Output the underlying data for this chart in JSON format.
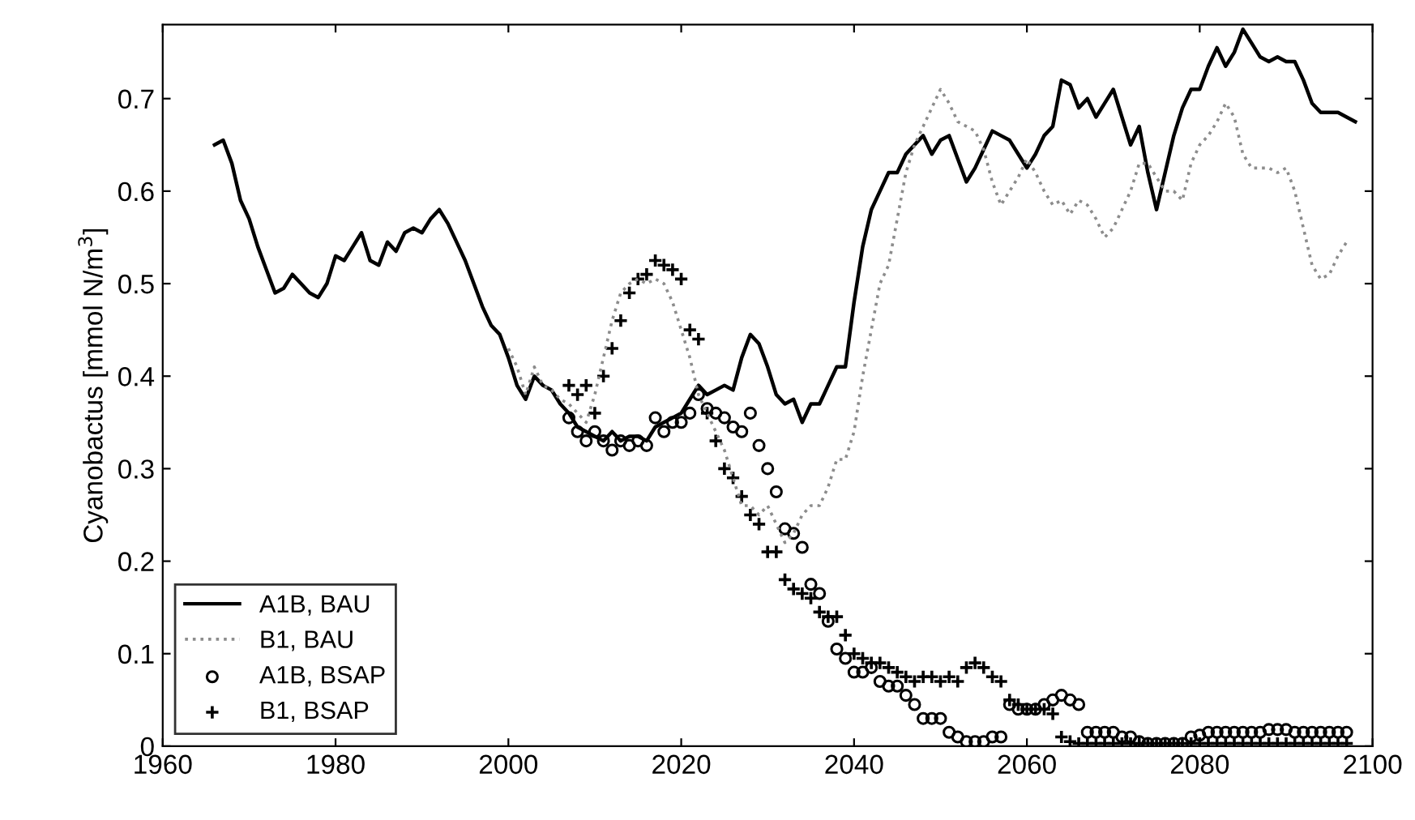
{
  "chart_data": {
    "type": "line",
    "ylabel": "Cyanobactus [mmol N/m$^{3}$]",
    "xlim": [
      1960,
      2100
    ],
    "xticks": [
      1960,
      1980,
      2000,
      2020,
      2040,
      2060,
      2080,
      2100
    ],
    "ylim": [
      0,
      0.78
    ],
    "yticks": [
      0,
      0.1,
      0.2,
      0.3,
      0.4,
      0.5,
      0.6,
      0.7
    ],
    "grid": false,
    "legend": "bottom left",
    "series": [
      {
        "name": "A1B, BAU",
        "color": "#000000",
        "line_style": "solid",
        "marker": "none",
        "x": [
          1966,
          1967,
          1968,
          1969,
          1970,
          1971,
          1972,
          1973,
          1974,
          1975,
          1976,
          1977,
          1978,
          1979,
          1980,
          1981,
          1982,
          1983,
          1984,
          1985,
          1986,
          1987,
          1988,
          1989,
          1990,
          1991,
          1992,
          1993,
          1994,
          1995,
          1996,
          1997,
          1998,
          1999,
          2000,
          2001,
          2002,
          2003,
          2004,
          2005,
          2006,
          2007,
          2008,
          2009,
          2010,
          2011,
          2012,
          2013,
          2014,
          2015,
          2016,
          2017,
          2018,
          2019,
          2020,
          2021,
          2022,
          2023,
          2024,
          2025,
          2026,
          2027,
          2028,
          2029,
          2030,
          2031,
          2032,
          2033,
          2034,
          2035,
          2036,
          2037,
          2038,
          2039,
          2040,
          2041,
          2042,
          2043,
          2044,
          2045,
          2046,
          2047,
          2048,
          2049,
          2050,
          2051,
          2052,
          2053,
          2054,
          2055,
          2056,
          2057,
          2058,
          2059,
          2060,
          2061,
          2062,
          2063,
          2064,
          2065,
          2066,
          2067,
          2068,
          2069,
          2070,
          2071,
          2072,
          2073,
          2074,
          2075,
          2076,
          2077,
          2078,
          2079,
          2080,
          2081,
          2082,
          2083,
          2084,
          2085,
          2086,
          2087,
          2088,
          2089,
          2090,
          2091,
          2092,
          2093,
          2094,
          2095,
          2096,
          2097,
          2098
        ],
        "values": [
          0.65,
          0.655,
          0.63,
          0.59,
          0.57,
          0.54,
          0.515,
          0.49,
          0.495,
          0.51,
          0.5,
          0.49,
          0.485,
          0.5,
          0.53,
          0.525,
          0.54,
          0.555,
          0.525,
          0.52,
          0.545,
          0.535,
          0.555,
          0.56,
          0.555,
          0.57,
          0.58,
          0.565,
          0.545,
          0.525,
          0.5,
          0.475,
          0.455,
          0.445,
          0.42,
          0.39,
          0.375,
          0.4,
          0.39,
          0.385,
          0.37,
          0.36,
          0.345,
          0.34,
          0.335,
          0.33,
          0.34,
          0.33,
          0.335,
          0.335,
          0.33,
          0.345,
          0.35,
          0.355,
          0.36,
          0.375,
          0.39,
          0.38,
          0.385,
          0.39,
          0.385,
          0.42,
          0.445,
          0.435,
          0.41,
          0.38,
          0.37,
          0.375,
          0.35,
          0.37,
          0.37,
          0.39,
          0.41,
          0.41,
          0.48,
          0.54,
          0.58,
          0.6,
          0.62,
          0.62,
          0.64,
          0.65,
          0.66,
          0.64,
          0.655,
          0.66,
          0.635,
          0.61,
          0.625,
          0.645,
          0.665,
          0.66,
          0.655,
          0.64,
          0.625,
          0.64,
          0.66,
          0.67,
          0.72,
          0.715,
          0.69,
          0.7,
          0.68,
          0.695,
          0.71,
          0.68,
          0.65,
          0.67,
          0.62,
          0.58,
          0.62,
          0.66,
          0.69,
          0.71,
          0.71,
          0.735,
          0.755,
          0.735,
          0.75,
          0.775,
          0.76,
          0.745,
          0.74,
          0.745,
          0.74,
          0.74,
          0.72,
          0.695,
          0.685,
          0.685,
          0.685,
          0.68,
          0.675
        ]
      },
      {
        "name": "B1, BAU",
        "color": "#8c8c8c",
        "line_style": "dotted",
        "marker": "none",
        "x": [
          2000,
          2001,
          2002,
          2003,
          2004,
          2005,
          2006,
          2007,
          2008,
          2009,
          2010,
          2011,
          2012,
          2013,
          2014,
          2015,
          2016,
          2017,
          2018,
          2019,
          2020,
          2021,
          2022,
          2023,
          2024,
          2025,
          2026,
          2027,
          2028,
          2029,
          2030,
          2031,
          2032,
          2033,
          2034,
          2035,
          2036,
          2037,
          2038,
          2039,
          2040,
          2041,
          2042,
          2043,
          2044,
          2045,
          2046,
          2047,
          2048,
          2049,
          2050,
          2051,
          2052,
          2053,
          2054,
          2055,
          2056,
          2057,
          2058,
          2059,
          2060,
          2061,
          2062,
          2063,
          2064,
          2065,
          2066,
          2067,
          2068,
          2069,
          2070,
          2071,
          2072,
          2073,
          2074,
          2075,
          2076,
          2077,
          2078,
          2079,
          2080,
          2081,
          2082,
          2083,
          2084,
          2085,
          2086,
          2087,
          2088,
          2089,
          2090,
          2091,
          2092,
          2093,
          2094,
          2095,
          2096,
          2097
        ],
        "values": [
          0.43,
          0.41,
          0.38,
          0.41,
          0.39,
          0.385,
          0.375,
          0.37,
          0.36,
          0.35,
          0.38,
          0.42,
          0.46,
          0.49,
          0.5,
          0.505,
          0.5,
          0.505,
          0.5,
          0.48,
          0.45,
          0.42,
          0.38,
          0.36,
          0.34,
          0.32,
          0.29,
          0.26,
          0.26,
          0.25,
          0.26,
          0.24,
          0.22,
          0.23,
          0.25,
          0.26,
          0.26,
          0.28,
          0.31,
          0.31,
          0.34,
          0.4,
          0.45,
          0.5,
          0.52,
          0.57,
          0.62,
          0.65,
          0.67,
          0.69,
          0.71,
          0.695,
          0.675,
          0.67,
          0.665,
          0.645,
          0.61,
          0.585,
          0.6,
          0.615,
          0.635,
          0.62,
          0.6,
          0.585,
          0.59,
          0.575,
          0.59,
          0.585,
          0.57,
          0.55,
          0.56,
          0.58,
          0.6,
          0.63,
          0.63,
          0.615,
          0.6,
          0.6,
          0.59,
          0.63,
          0.65,
          0.66,
          0.675,
          0.695,
          0.68,
          0.64,
          0.625,
          0.625,
          0.625,
          0.62,
          0.625,
          0.6,
          0.56,
          0.52,
          0.505,
          0.51,
          0.53,
          0.545
        ]
      },
      {
        "name": "A1B, BSAP",
        "color": "#000000",
        "type": "scatter",
        "marker": "circle",
        "x": [
          2007,
          2008,
          2009,
          2010,
          2011,
          2012,
          2013,
          2014,
          2015,
          2016,
          2017,
          2018,
          2019,
          2020,
          2021,
          2022,
          2023,
          2024,
          2025,
          2026,
          2027,
          2028,
          2029,
          2030,
          2031,
          2032,
          2033,
          2034,
          2035,
          2036,
          2037,
          2038,
          2039,
          2040,
          2041,
          2042,
          2043,
          2044,
          2045,
          2046,
          2047,
          2048,
          2049,
          2050,
          2051,
          2052,
          2053,
          2054,
          2055,
          2056,
          2057,
          2058,
          2059,
          2060,
          2061,
          2062,
          2063,
          2064,
          2065,
          2066,
          2067,
          2068,
          2069,
          2070,
          2071,
          2072,
          2073,
          2074,
          2075,
          2076,
          2077,
          2078,
          2079,
          2080,
          2081,
          2082,
          2083,
          2084,
          2085,
          2086,
          2087,
          2088,
          2089,
          2090,
          2091,
          2092,
          2093,
          2094,
          2095,
          2096,
          2097
        ],
        "values": [
          0.355,
          0.34,
          0.33,
          0.34,
          0.33,
          0.32,
          0.33,
          0.325,
          0.33,
          0.325,
          0.355,
          0.34,
          0.35,
          0.35,
          0.36,
          0.38,
          0.365,
          0.36,
          0.355,
          0.345,
          0.34,
          0.36,
          0.325,
          0.3,
          0.275,
          0.235,
          0.23,
          0.215,
          0.175,
          0.165,
          0.135,
          0.105,
          0.095,
          0.08,
          0.08,
          0.085,
          0.07,
          0.065,
          0.065,
          0.055,
          0.045,
          0.03,
          0.03,
          0.03,
          0.015,
          0.01,
          0.005,
          0.005,
          0.005,
          0.01,
          0.01,
          0.045,
          0.04,
          0.04,
          0.04,
          0.045,
          0.05,
          0.055,
          0.05,
          0.045,
          0.015,
          0.015,
          0.015,
          0.015,
          0.01,
          0.01,
          0.005,
          0.003,
          0.003,
          0.003,
          0.003,
          0.003,
          0.01,
          0.012,
          0.015,
          0.015,
          0.015,
          0.015,
          0.015,
          0.015,
          0.015,
          0.018,
          0.018,
          0.018,
          0.015,
          0.015,
          0.015,
          0.015,
          0.015,
          0.015,
          0.015
        ]
      },
      {
        "name": "B1, BSAP",
        "color": "#000000",
        "type": "scatter",
        "marker": "cross",
        "x": [
          2007,
          2008,
          2009,
          2010,
          2011,
          2012,
          2013,
          2014,
          2015,
          2016,
          2017,
          2018,
          2019,
          2020,
          2021,
          2022,
          2023,
          2024,
          2025,
          2026,
          2027,
          2028,
          2029,
          2030,
          2031,
          2032,
          2033,
          2034,
          2035,
          2036,
          2037,
          2038,
          2039,
          2040,
          2041,
          2042,
          2043,
          2044,
          2045,
          2046,
          2047,
          2048,
          2049,
          2050,
          2051,
          2052,
          2053,
          2054,
          2055,
          2056,
          2057,
          2058,
          2059,
          2060,
          2061,
          2062,
          2063,
          2064,
          2065,
          2066,
          2067,
          2068,
          2069,
          2070,
          2071,
          2072,
          2073,
          2074,
          2075,
          2076,
          2077,
          2078,
          2079,
          2080,
          2081,
          2082,
          2083,
          2084,
          2085,
          2086,
          2087,
          2088,
          2089,
          2090,
          2091,
          2092,
          2093,
          2094,
          2095,
          2096,
          2097
        ],
        "values": [
          0.39,
          0.38,
          0.39,
          0.36,
          0.4,
          0.43,
          0.46,
          0.49,
          0.505,
          0.51,
          0.525,
          0.52,
          0.515,
          0.505,
          0.45,
          0.44,
          0.36,
          0.33,
          0.3,
          0.29,
          0.27,
          0.25,
          0.24,
          0.21,
          0.21,
          0.18,
          0.17,
          0.165,
          0.16,
          0.145,
          0.14,
          0.14,
          0.12,
          0.1,
          0.095,
          0.09,
          0.09,
          0.085,
          0.08,
          0.075,
          0.07,
          0.075,
          0.075,
          0.07,
          0.075,
          0.07,
          0.085,
          0.09,
          0.085,
          0.075,
          0.07,
          0.05,
          0.045,
          0.04,
          0.04,
          0.04,
          0.035,
          0.01,
          0.005,
          0.003,
          0.003,
          0.003,
          0.003,
          0.003,
          0.003,
          0.003,
          0.003,
          0.003,
          0.003,
          0.003,
          0.003,
          0.003,
          0.003,
          0.003,
          0.003,
          0.003,
          0.003,
          0.003,
          0.003,
          0.003,
          0.003,
          0.003,
          0.003,
          0.003,
          0.003,
          0.003,
          0.003,
          0.003,
          0.003,
          0.003,
          0.003
        ]
      }
    ]
  }
}
